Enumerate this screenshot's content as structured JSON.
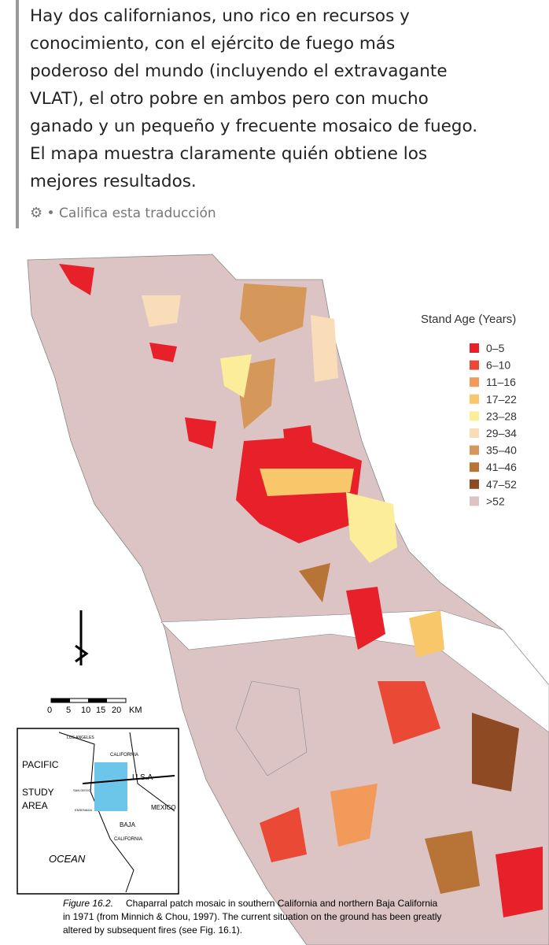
{
  "post": {
    "lines": [
      "Hay dos californianos, uno rico en recursos y",
      "conocimiento, con el ejército de fuego más",
      "poderoso del mundo (incluyendo el extravagante",
      "VLAT), el otro pobre en ambos pero con mucho",
      "ganado y un pequeño y frecuente mosaico de fuego.",
      "El mapa muestra claramente quién obtiene los",
      "mejores resultados."
    ],
    "rate_translation": "Califica esta traducción"
  },
  "map": {
    "legend": {
      "title": "Stand Age (Years)",
      "items": [
        {
          "label": "0–5",
          "color": "#e8202a"
        },
        {
          "label": "6–10",
          "color": "#ea4a35"
        },
        {
          "label": "11–16",
          "color": "#f29a5a"
        },
        {
          "label": "17–22",
          "color": "#f8c76a"
        },
        {
          "label": "23–28",
          "color": "#fbed9a"
        },
        {
          "label": "29–34",
          "color": "#f9ddb8"
        },
        {
          "label": "35–40",
          "color": "#d6975a"
        },
        {
          "label": "41–46",
          "color": "#b87337"
        },
        {
          "label": "47–52",
          "color": "#8e4a22"
        },
        {
          "label": ">52",
          "color": "#dcc4c4"
        }
      ]
    },
    "scale": {
      "labels": [
        "0",
        "5",
        "10",
        "15",
        "20",
        "KM"
      ]
    },
    "inset": {
      "pacific": "PACIFIC",
      "ocean": "OCEAN",
      "study_area": [
        "STUDY",
        "AREA"
      ],
      "usa": "U.S.A",
      "mexico": "MEXICO",
      "california": "CALIFORNIA",
      "baja": [
        "BAJA",
        "CALIFORNIA"
      ],
      "los_angeles": "LOS ANGELES",
      "san_diego": "SAN DIEGO",
      "ensenada": "ENSENADA"
    },
    "caption": {
      "label": "Figure 16.2.",
      "lines": [
        "Chaparral patch mosaic in southern California and northern Baja California",
        "in 1971 (from Minnich & Chou, 1997). The current situation on the ground has been greatly",
        "altered by subsequent fires (see Fig. 16.1)."
      ]
    }
  }
}
